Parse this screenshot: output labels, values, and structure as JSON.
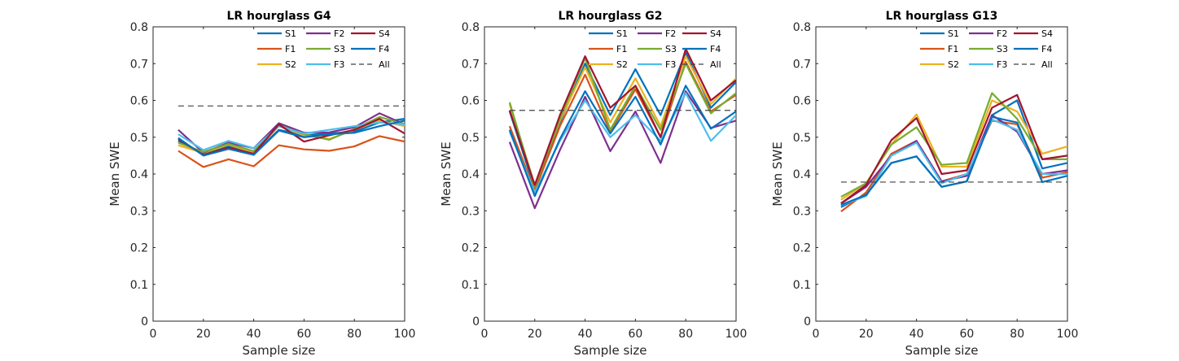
{
  "chart_data": [
    {
      "type": "line",
      "title": "LR hourglass G4",
      "xlabel": "Sample size",
      "ylabel": "Mean SWE",
      "xlim": [
        0,
        100
      ],
      "ylim": [
        0,
        0.8
      ],
      "xticks": [
        "0",
        "20",
        "40",
        "60",
        "80",
        "100"
      ],
      "yticks": [
        "0",
        "0.1",
        "0.2",
        "0.3",
        "0.4",
        "0.5",
        "0.6",
        "0.7",
        "0.8"
      ],
      "grid": false,
      "legend_position": "top-right",
      "x": [
        10,
        20,
        30,
        40,
        50,
        60,
        70,
        80,
        90,
        100
      ],
      "series": [
        {
          "name": "S1",
          "color": "#0072BD",
          "style": "solid",
          "values": [
            0.49,
            0.455,
            0.475,
            0.455,
            0.52,
            0.505,
            0.51,
            0.515,
            0.54,
            0.55
          ]
        },
        {
          "name": "F1",
          "color": "#D95319",
          "style": "solid",
          "values": [
            0.463,
            0.419,
            0.44,
            0.421,
            0.478,
            0.467,
            0.463,
            0.475,
            0.503,
            0.488
          ]
        },
        {
          "name": "S2",
          "color": "#EDB120",
          "style": "solid",
          "values": [
            0.478,
            0.457,
            0.48,
            0.458,
            0.53,
            0.505,
            0.495,
            0.52,
            0.545,
            0.53
          ]
        },
        {
          "name": "F2",
          "color": "#7E2F8E",
          "style": "solid",
          "values": [
            0.52,
            0.458,
            0.485,
            0.47,
            0.538,
            0.512,
            0.513,
            0.527,
            0.565,
            0.535
          ]
        },
        {
          "name": "S3",
          "color": "#77AC30",
          "style": "solid",
          "values": [
            0.485,
            0.46,
            0.482,
            0.462,
            0.532,
            0.508,
            0.493,
            0.522,
            0.555,
            0.535
          ]
        },
        {
          "name": "F3",
          "color": "#4DBEEE",
          "style": "solid",
          "values": [
            0.508,
            0.465,
            0.49,
            0.47,
            0.53,
            0.51,
            0.52,
            0.53,
            0.54,
            0.535
          ]
        },
        {
          "name": "S4",
          "color": "#A2142F",
          "style": "solid",
          "values": [
            0.495,
            0.452,
            0.472,
            0.455,
            0.535,
            0.488,
            0.505,
            0.52,
            0.55,
            0.51
          ]
        },
        {
          "name": "F4",
          "color": "#0072BD",
          "style": "solid",
          "values": [
            0.498,
            0.45,
            0.468,
            0.452,
            0.518,
            0.5,
            0.508,
            0.512,
            0.53,
            0.545
          ]
        },
        {
          "name": "All",
          "color": "#404040",
          "style": "dashed",
          "values": [
            0.585,
            0.585,
            0.585,
            0.585,
            0.585,
            0.585,
            0.585,
            0.585,
            0.585,
            0.585
          ],
          "xrange": [
            10,
            100
          ]
        }
      ]
    },
    {
      "type": "line",
      "title": "LR hourglass G2",
      "xlabel": "Sample size",
      "ylabel": "Mean SWE",
      "xlim": [
        0,
        100
      ],
      "ylim": [
        0,
        0.8
      ],
      "xticks": [
        "0",
        "20",
        "40",
        "60",
        "80",
        "100"
      ],
      "yticks": [
        "0",
        "0.1",
        "0.2",
        "0.3",
        "0.4",
        "0.5",
        "0.6",
        "0.7",
        "0.8"
      ],
      "grid": false,
      "legend_position": "top-right",
      "x": [
        10,
        20,
        30,
        40,
        50,
        60,
        70,
        80,
        90,
        100
      ],
      "series": [
        {
          "name": "S1",
          "color": "#0072BD",
          "style": "solid",
          "values": [
            0.57,
            0.36,
            0.54,
            0.7,
            0.56,
            0.685,
            0.56,
            0.73,
            0.58,
            0.65
          ]
        },
        {
          "name": "F1",
          "color": "#D95319",
          "style": "solid",
          "values": [
            0.53,
            0.355,
            0.53,
            0.67,
            0.515,
            0.63,
            0.5,
            0.705,
            0.57,
            0.615
          ]
        },
        {
          "name": "S2",
          "color": "#EDB120",
          "style": "solid",
          "values": [
            0.59,
            0.37,
            0.545,
            0.69,
            0.54,
            0.66,
            0.53,
            0.72,
            0.59,
            0.66
          ]
        },
        {
          "name": "F2",
          "color": "#7E2F8E",
          "style": "solid",
          "values": [
            0.487,
            0.307,
            0.465,
            0.61,
            0.462,
            0.57,
            0.43,
            0.625,
            0.525,
            0.545
          ]
        },
        {
          "name": "S3",
          "color": "#77AC30",
          "style": "solid",
          "values": [
            0.595,
            0.365,
            0.55,
            0.715,
            0.52,
            0.64,
            0.52,
            0.7,
            0.565,
            0.62
          ]
        },
        {
          "name": "F3",
          "color": "#4DBEEE",
          "style": "solid",
          "values": [
            0.515,
            0.35,
            0.49,
            0.6,
            0.5,
            0.56,
            0.49,
            0.62,
            0.49,
            0.56
          ]
        },
        {
          "name": "S4",
          "color": "#A2142F",
          "style": "solid",
          "values": [
            0.573,
            0.37,
            0.56,
            0.72,
            0.58,
            0.64,
            0.5,
            0.74,
            0.6,
            0.655
          ]
        },
        {
          "name": "F4",
          "color": "#0072BD",
          "style": "solid",
          "values": [
            0.52,
            0.34,
            0.495,
            0.625,
            0.51,
            0.61,
            0.48,
            0.64,
            0.523,
            0.57
          ]
        },
        {
          "name": "All",
          "color": "#404040",
          "style": "dashed",
          "values": [
            0.573,
            0.573,
            0.573,
            0.573,
            0.573,
            0.573,
            0.573,
            0.573,
            0.573,
            0.573
          ],
          "xrange": [
            10,
            100
          ]
        }
      ]
    },
    {
      "type": "line",
      "title": "LR hourglass G13",
      "xlabel": "Sample size",
      "ylabel": "Mean SWE",
      "xlim": [
        0,
        100
      ],
      "ylim": [
        0,
        0.8
      ],
      "xticks": [
        "0",
        "20",
        "40",
        "60",
        "80",
        "100"
      ],
      "yticks": [
        "0",
        "0.1",
        "0.2",
        "0.3",
        "0.4",
        "0.5",
        "0.6",
        "0.7",
        "0.8"
      ],
      "grid": false,
      "legend_position": "top-right",
      "x": [
        10,
        20,
        30,
        40,
        50,
        60,
        70,
        80,
        90,
        100
      ],
      "series": [
        {
          "name": "S1",
          "color": "#0072BD",
          "style": "solid",
          "values": [
            0.31,
            0.345,
            0.43,
            0.448,
            0.365,
            0.38,
            0.56,
            0.6,
            0.415,
            0.43
          ]
        },
        {
          "name": "F1",
          "color": "#D95319",
          "style": "solid",
          "values": [
            0.298,
            0.35,
            0.455,
            0.49,
            0.38,
            0.4,
            0.545,
            0.535,
            0.39,
            0.405
          ]
        },
        {
          "name": "S2",
          "color": "#EDB120",
          "style": "solid",
          "values": [
            0.33,
            0.375,
            0.48,
            0.562,
            0.42,
            0.42,
            0.6,
            0.57,
            0.455,
            0.475
          ]
        },
        {
          "name": "F2",
          "color": "#7E2F8E",
          "style": "solid",
          "values": [
            0.32,
            0.365,
            0.45,
            0.49,
            0.38,
            0.395,
            0.56,
            0.515,
            0.4,
            0.41
          ]
        },
        {
          "name": "S3",
          "color": "#77AC30",
          "style": "solid",
          "values": [
            0.338,
            0.375,
            0.48,
            0.527,
            0.425,
            0.43,
            0.62,
            0.55,
            0.44,
            0.44
          ]
        },
        {
          "name": "F3",
          "color": "#4DBEEE",
          "style": "solid",
          "values": [
            0.315,
            0.34,
            0.45,
            0.485,
            0.375,
            0.4,
            0.548,
            0.52,
            0.4,
            0.4
          ]
        },
        {
          "name": "S4",
          "color": "#A2142F",
          "style": "solid",
          "values": [
            0.32,
            0.37,
            0.492,
            0.552,
            0.4,
            0.41,
            0.58,
            0.615,
            0.44,
            0.45
          ]
        },
        {
          "name": "F4",
          "color": "#0072BD",
          "style": "solid",
          "values": [
            0.316,
            0.343,
            0.43,
            0.448,
            0.365,
            0.38,
            0.555,
            0.54,
            0.378,
            0.395
          ]
        },
        {
          "name": "All",
          "color": "#404040",
          "style": "dashed",
          "values": [
            0.378,
            0.378,
            0.378,
            0.378,
            0.378,
            0.378,
            0.378,
            0.378,
            0.378,
            0.378
          ],
          "xrange": [
            10,
            100
          ]
        }
      ]
    }
  ]
}
